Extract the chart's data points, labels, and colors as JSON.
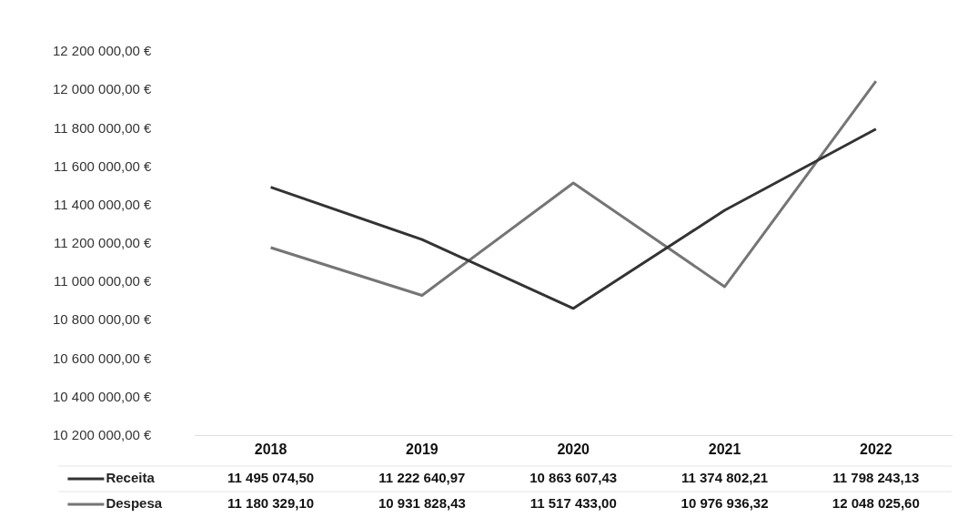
{
  "chart_data": {
    "type": "line",
    "categories": [
      "2018",
      "2019",
      "2020",
      "2021",
      "2022"
    ],
    "series": [
      {
        "name": "Receita",
        "color": "#333333",
        "values": [
          11495074.5,
          11222640.97,
          10863607.43,
          11374802.21,
          11798243.13
        ],
        "value_labels": [
          "11 495 074,50",
          "11 222 640,97",
          "10 863 607,43",
          "11 374 802,21",
          "11 798 243,13"
        ]
      },
      {
        "name": "Despesa",
        "color": "#757575",
        "values": [
          11180329.1,
          10931828.43,
          11517433.0,
          10976936.32,
          12048025.6
        ],
        "value_labels": [
          "11 180 329,10",
          "10 931 828,43",
          "11 517 433,00",
          "10 976 936,32",
          "12 048 025,60"
        ]
      }
    ],
    "ylim": [
      10200000,
      12200000
    ],
    "yticks": [
      {
        "value": 10200000,
        "label": "10 200 000,00 €"
      },
      {
        "value": 10400000,
        "label": "10 400 000,00 €"
      },
      {
        "value": 10600000,
        "label": "10 600 000,00 €"
      },
      {
        "value": 10800000,
        "label": "10 800 000,00 €"
      },
      {
        "value": 11000000,
        "label": "11 000 000,00 €"
      },
      {
        "value": 11200000,
        "label": "11 200 000,00 €"
      },
      {
        "value": 11400000,
        "label": "11 400 000,00 €"
      },
      {
        "value": 11600000,
        "label": "11 600 000,00 €"
      },
      {
        "value": 11800000,
        "label": "11 800 000,00 €"
      },
      {
        "value": 12000000,
        "label": "12 000 000,00 €"
      },
      {
        "value": 12200000,
        "label": "12 200 000,00 €"
      }
    ],
    "legend": "bottom left",
    "marker": "none",
    "line_style": "solid",
    "grid": false
  }
}
